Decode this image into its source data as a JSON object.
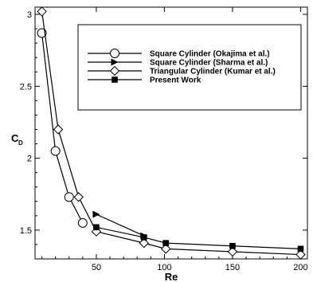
{
  "chart_data": {
    "type": "line",
    "xlabel": "Re",
    "ylabel": "C",
    "ylabel_subscript": "D",
    "xlim": [
      5,
      205
    ],
    "ylim": [
      1.3,
      3.05
    ],
    "x_ticks": [
      50,
      100,
      150,
      200
    ],
    "x_tick_labels": [
      "50",
      "100",
      "150",
      "200"
    ],
    "y_ticks": [
      1.5,
      2,
      2.5,
      3
    ],
    "y_tick_labels": [
      "1.5",
      "2",
      "2.5",
      "3"
    ],
    "grid": false,
    "legend_position": "top-right",
    "series": [
      {
        "name": "Square Cylinder (Okajima et al.)",
        "marker": "circle",
        "x": [
          10,
          20,
          30,
          40
        ],
        "y": [
          2.87,
          2.05,
          1.73,
          1.55
        ]
      },
      {
        "name": "Square Cylinder (Sharma et al.)",
        "marker": "triangle-right",
        "x": [
          50,
          85
        ],
        "y": [
          1.61,
          1.46
        ]
      },
      {
        "name": "Triangular Cylinder (Kumar et al.)",
        "marker": "diamond",
        "x": [
          10,
          22,
          37,
          50,
          85,
          101,
          150,
          200
        ],
        "y": [
          3.02,
          2.2,
          1.73,
          1.49,
          1.41,
          1.37,
          1.35,
          1.33
        ]
      },
      {
        "name": "Present Work",
        "marker": "square",
        "x": [
          50,
          85,
          101,
          150,
          200
        ],
        "y": [
          1.52,
          1.45,
          1.41,
          1.39,
          1.37
        ]
      }
    ]
  }
}
